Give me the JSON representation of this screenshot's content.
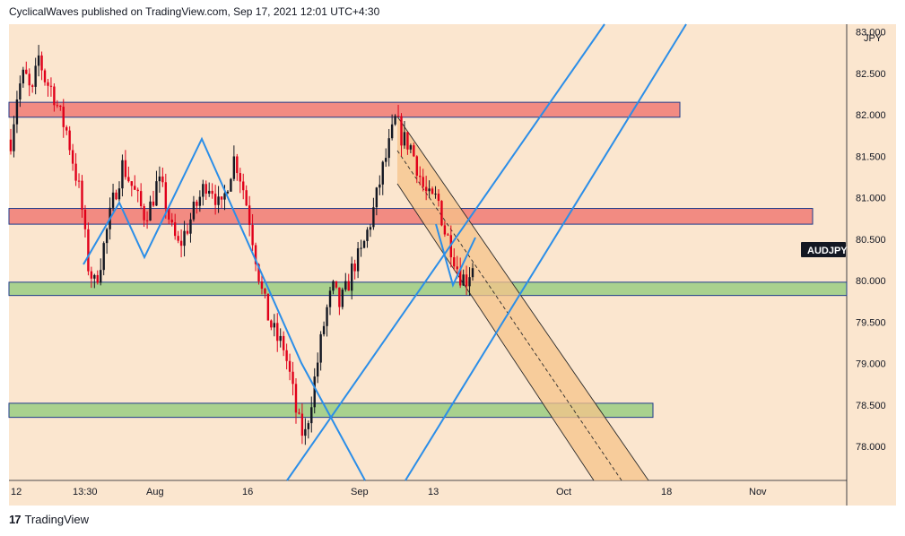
{
  "header": {
    "published_text": "CyclicalWaves published on TradingView.com, Sep 17, 2021 12:01 UTC+4:30"
  },
  "footer": {
    "brand": "TradingView",
    "logo_glyph": "17"
  },
  "colors": {
    "background": "#fbe6cf",
    "candle_up": "#131722",
    "candle_down": "#e0001a",
    "resistance_zone": "#f28b82",
    "support_zone": "#a9d18e",
    "zone_border": "#1e3a8a",
    "wave_line": "#2b8ee8",
    "channel_fill": "#f5c38a",
    "channel_line": "#2a2a2a",
    "symbol_badge": "#131722"
  },
  "chart_data": {
    "type": "candlestick",
    "symbol": "AUDJPY",
    "currency": "JPY",
    "price_axis": {
      "range": [
        77.6,
        82.95
      ],
      "ticks": [
        78.0,
        78.5,
        79.0,
        79.5,
        80.0,
        80.5,
        81.0,
        81.5,
        82.0,
        82.5
      ],
      "tick_labels": [
        "78.000",
        "78.500",
        "79.000",
        "79.500",
        "80.000",
        "80.500",
        "81.000",
        "81.500",
        "82.000",
        "82.500"
      ],
      "top_label_partial": "83.000"
    },
    "time_axis": {
      "labels": [
        "12",
        "13:30",
        "Aug",
        "16",
        "Sep",
        "13",
        "Oct",
        "18",
        "Nov"
      ]
    },
    "price_tag": "AUDJPY",
    "zones": [
      {
        "kind": "resistance",
        "low": 81.97,
        "high": 82.15
      },
      {
        "kind": "resistance",
        "low": 80.68,
        "high": 80.87
      },
      {
        "kind": "support",
        "low": 79.82,
        "high": 79.98
      },
      {
        "kind": "support",
        "low": 78.35,
        "high": 78.52
      }
    ],
    "close_path": [
      [
        0,
        81.7
      ],
      [
        1,
        82.3
      ],
      [
        2,
        82.5
      ],
      [
        3,
        82.2
      ],
      [
        4,
        82.7
      ],
      [
        5,
        82.4
      ],
      [
        6,
        82.3
      ],
      [
        7,
        82.0
      ],
      [
        8,
        81.8
      ],
      [
        9,
        81.4
      ],
      [
        10,
        81.0
      ],
      [
        11,
        80.2
      ],
      [
        12,
        79.95
      ],
      [
        13,
        80.3
      ],
      [
        14,
        80.7
      ],
      [
        15,
        81.1
      ],
      [
        16,
        81.4
      ],
      [
        17,
        81.2
      ],
      [
        18,
        81.0
      ],
      [
        19,
        80.8
      ],
      [
        20,
        80.9
      ],
      [
        21,
        81.2
      ],
      [
        22,
        81.0
      ],
      [
        23,
        80.6
      ],
      [
        24,
        80.4
      ],
      [
        25,
        80.6
      ],
      [
        26,
        80.8
      ],
      [
        27,
        81.0
      ],
      [
        28,
        81.2
      ],
      [
        29,
        81.1
      ],
      [
        30,
        80.8
      ],
      [
        31,
        81.2
      ],
      [
        32,
        81.5
      ],
      [
        33,
        81.2
      ],
      [
        34,
        80.8
      ],
      [
        35,
        80.3
      ],
      [
        36,
        79.8
      ],
      [
        37,
        79.5
      ],
      [
        38,
        79.3
      ],
      [
        39,
        79.2
      ],
      [
        40,
        78.8
      ],
      [
        41,
        78.3
      ],
      [
        42,
        78.1
      ],
      [
        43,
        78.6
      ],
      [
        44,
        79.1
      ],
      [
        45,
        79.6
      ],
      [
        46,
        79.9
      ],
      [
        47,
        79.7
      ],
      [
        48,
        79.9
      ],
      [
        49,
        80.2
      ],
      [
        50,
        80.3
      ],
      [
        51,
        80.6
      ],
      [
        52,
        80.9
      ],
      [
        53,
        81.3
      ],
      [
        54,
        81.6
      ],
      [
        55,
        81.95
      ],
      [
        56,
        81.7
      ],
      [
        57,
        81.65
      ],
      [
        58,
        81.4
      ],
      [
        59,
        81.1
      ],
      [
        60,
        80.95
      ],
      [
        61,
        81.0
      ],
      [
        62,
        80.6
      ],
      [
        63,
        80.4
      ],
      [
        64,
        80.1
      ],
      [
        65,
        80.0
      ],
      [
        66,
        80.2
      ]
    ]
  }
}
